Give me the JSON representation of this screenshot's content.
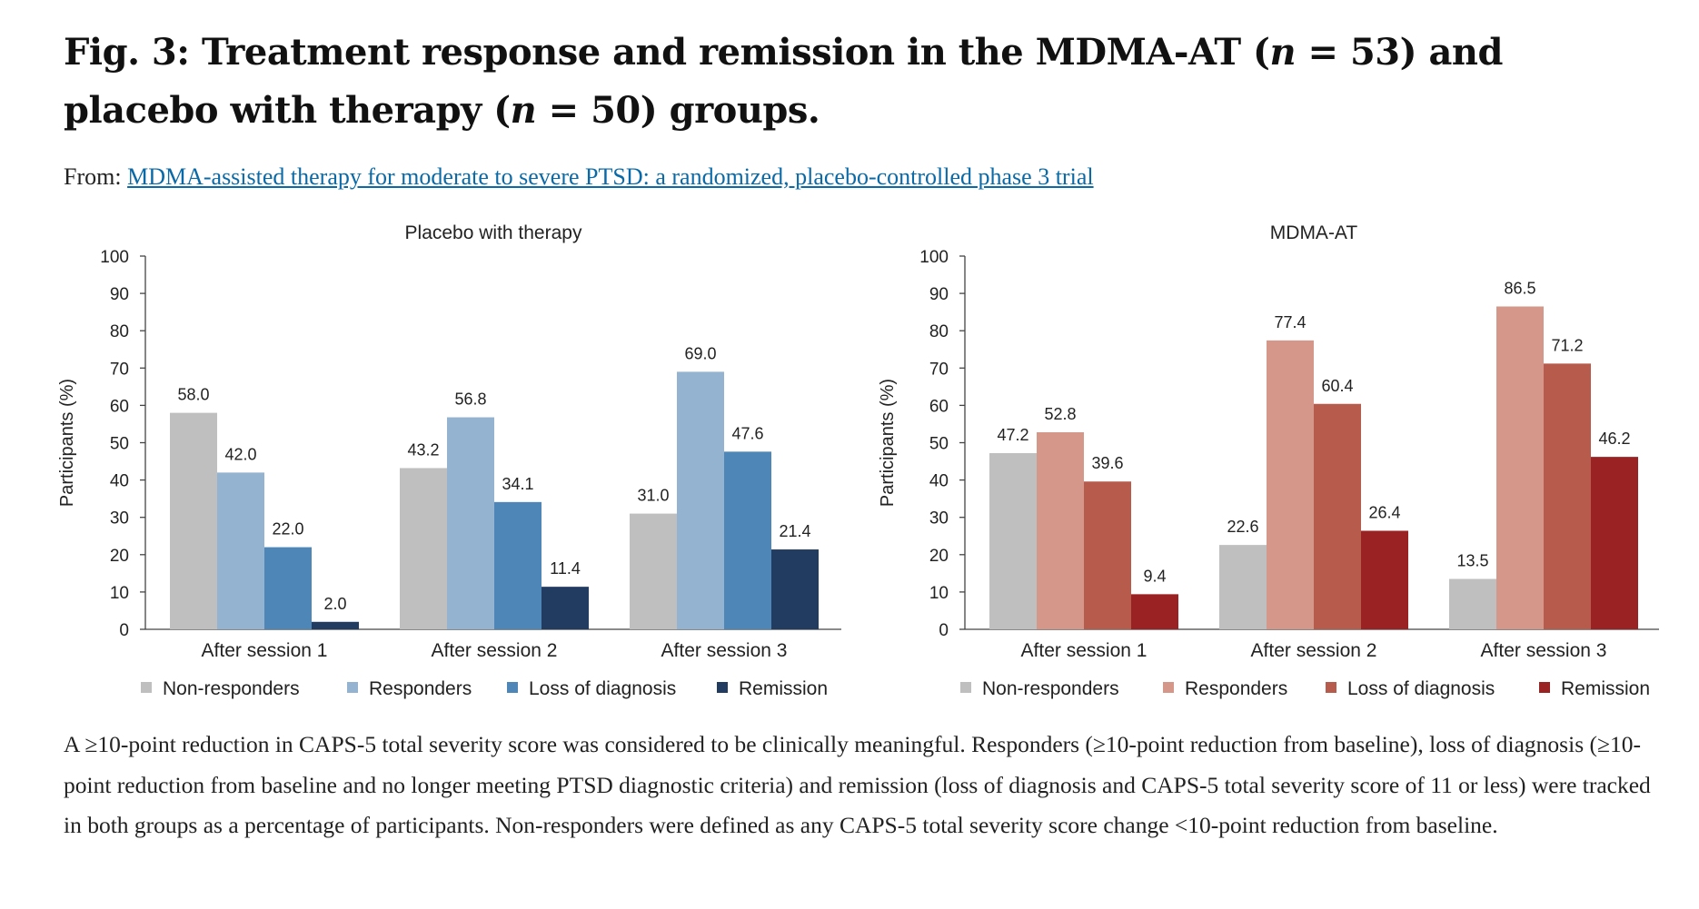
{
  "figure": {
    "title_pre": "Fig. 3: Treatment response and remission in the MDMA-AT (",
    "title_n1_symbol": "n",
    "title_mid": " = 53) and placebo with therapy (",
    "title_n2_symbol": "n",
    "title_post": " = 50) groups.",
    "from_label": "From:",
    "from_link": "MDMA-assisted therapy for moderate to severe PTSD: a randomized, placebo-controlled phase 3 trial",
    "caption": "A ≥10-point reduction in CAPS-5 total severity score was considered to be clinically meaningful. Responders (≥10-point reduction from baseline), loss of diagnosis (≥10-point reduction from baseline and no longer meeting PTSD diagnostic criteria) and remission (loss of diagnosis and CAPS-5 total severity score of 11 or less) were tracked in both groups as a percentage of participants. Non-responders were defined as any CAPS-5 total severity score change <10-point reduction from baseline."
  },
  "chart_data": [
    {
      "type": "bar",
      "title": "Placebo with therapy",
      "ylabel": "Participants (%)",
      "ylim": [
        0,
        100
      ],
      "yticks": [
        0,
        10,
        20,
        30,
        40,
        50,
        60,
        70,
        80,
        90,
        100
      ],
      "categories": [
        "After session 1",
        "After session 2",
        "After session 3"
      ],
      "legend_position": "bottom",
      "series": [
        {
          "name": "Non-responders",
          "color": "#bfbfbf",
          "values": [
            58.0,
            43.2,
            31.0
          ]
        },
        {
          "name": "Responders",
          "color": "#93b3d1",
          "values": [
            42.0,
            56.8,
            69.0
          ]
        },
        {
          "name": "Loss of diagnosis",
          "color": "#4f86b8",
          "values": [
            22.0,
            34.1,
            47.6
          ]
        },
        {
          "name": "Remission",
          "color": "#223b61",
          "values": [
            2.0,
            11.4,
            21.4
          ]
        }
      ]
    },
    {
      "type": "bar",
      "title": "MDMA-AT",
      "ylabel": "Participants (%)",
      "ylim": [
        0,
        100
      ],
      "yticks": [
        0,
        10,
        20,
        30,
        40,
        50,
        60,
        70,
        80,
        90,
        100
      ],
      "categories": [
        "After session 1",
        "After session 2",
        "After session 3"
      ],
      "legend_position": "bottom",
      "series": [
        {
          "name": "Non-responders",
          "color": "#bfbfbf",
          "values": [
            47.2,
            22.6,
            13.5
          ]
        },
        {
          "name": "Responders",
          "color": "#d4978a",
          "values": [
            52.8,
            77.4,
            86.5
          ]
        },
        {
          "name": "Loss of diagnosis",
          "color": "#b75c4d",
          "values": [
            39.6,
            60.4,
            71.2
          ]
        },
        {
          "name": "Remission",
          "color": "#9b2222",
          "values": [
            9.4,
            26.4,
            46.2
          ]
        }
      ]
    }
  ]
}
